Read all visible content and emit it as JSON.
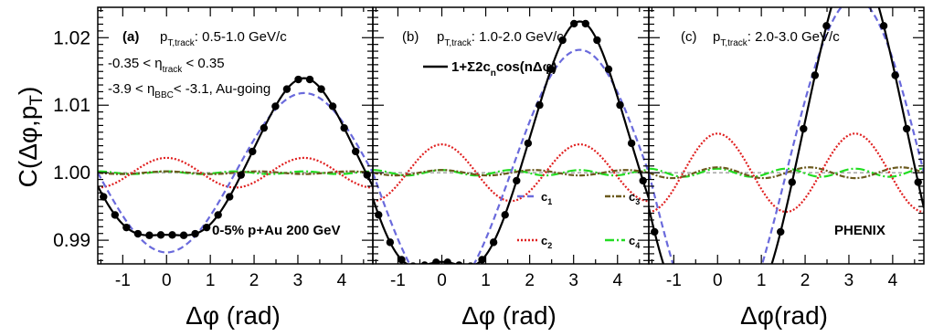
{
  "chart_data": {
    "type": "line",
    "y_axis_label": "C(Δφ,p_T)",
    "x_axis_label_panels_ab": "Δφ (rad)",
    "x_axis_label_panel_c": "Δφ(rad)",
    "xlim": [
      -1.5708,
      4.7124
    ],
    "ylim": [
      0.9865,
      1.0245
    ],
    "x_ticks": [
      -1,
      0,
      1,
      2,
      3,
      4
    ],
    "y_ticks": [
      0.99,
      1.0,
      1.01,
      1.02
    ],
    "y_tick_labels": [
      "0.99",
      "1.00",
      "1.01",
      "1.02"
    ],
    "grid": false,
    "dashed_reference_line": 1.0,
    "colors": {
      "fit": "#000000",
      "c1": "#6a6adc",
      "c2": "#e02020",
      "c3": "#6b5a1e",
      "c4": "#22dd22"
    },
    "panels": [
      {
        "tag": "(a)",
        "pt_label": "0.5-1.0 GeV/c",
        "eta_track_label": "-0.35 < η_track < 0.35",
        "eta_bbc_label": "-3.9 < η_BBC < -3.1, Au-going",
        "system_label": "0-5% p+Au 200 GeV",
        "coefficients": {
          "c1": -0.0059,
          "c2": 0.0011,
          "c3": 0.0001,
          "c4": 0.0001
        }
      },
      {
        "tag": "(b)",
        "pt_label": "1.0-2.0 GeV/c",
        "formula_label": "1+Σ2c_ncos(nΔφ)",
        "coefficients": {
          "c1": -0.0091,
          "c2": 0.0021,
          "c3": 0.0002,
          "c4": 0.0002
        }
      },
      {
        "tag": "(c)",
        "pt_label": "2.0-3.0 GeV/c",
        "experiment_label": "PHENIX",
        "coefficients": {
          "c1": -0.0129,
          "c2": 0.0029,
          "c3": 0.0004,
          "c4": 0.0003
        }
      }
    ],
    "pt_label_prefix": "p",
    "pt_label_subscript": "T,track",
    "legend": [
      {
        "key": "c1",
        "label": "c",
        "subscript": "1"
      },
      {
        "key": "c3",
        "label": "c",
        "subscript": "3"
      },
      {
        "key": "c2",
        "label": "c",
        "subscript": "2"
      },
      {
        "key": "c4",
        "label": "c",
        "subscript": "4"
      }
    ]
  }
}
